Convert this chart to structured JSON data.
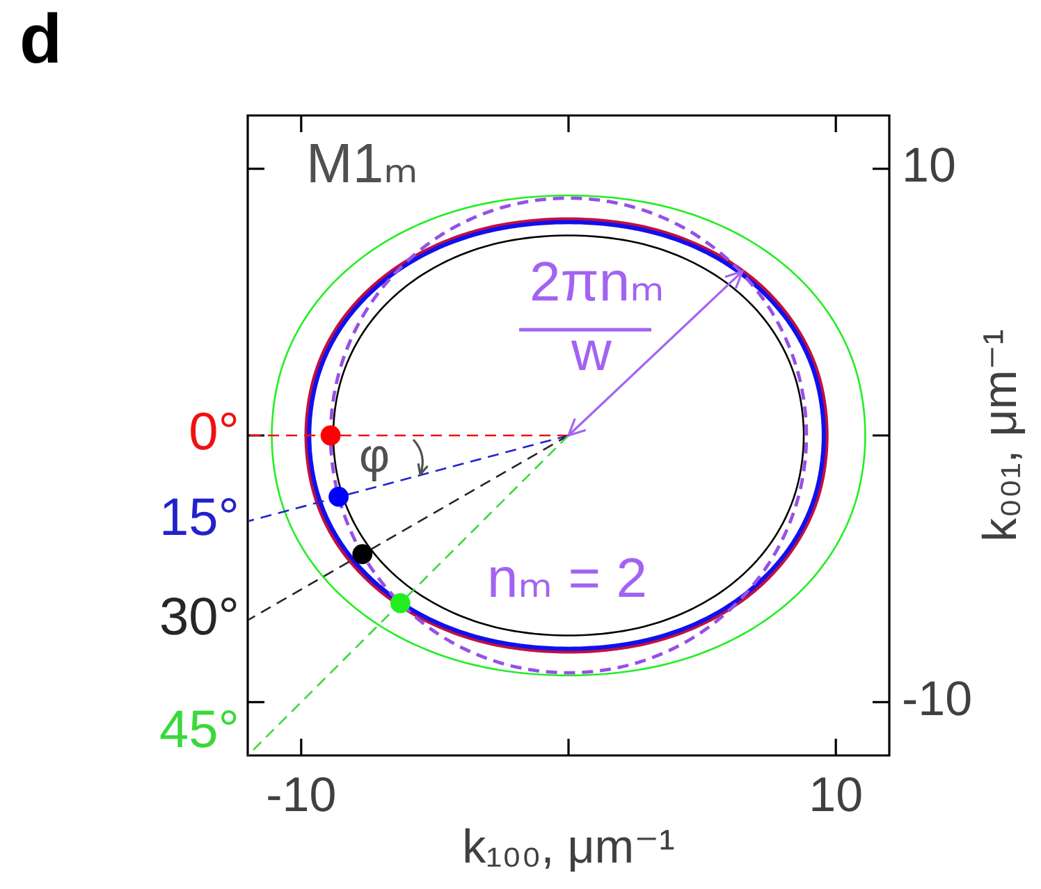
{
  "chart_data": {
    "type": "line",
    "xlim": [
      -12,
      12
    ],
    "ylim": [
      -12,
      12
    ],
    "xticks": [
      -10,
      {
        "value": 0,
        "label": null
      },
      10
    ],
    "yticks": [
      -10,
      {
        "value": 0,
        "label": null
      },
      10
    ],
    "xlabel": "k₁₀₀, μm⁻¹",
    "ylabel": "k₀₀₁, μm⁻¹",
    "annotations": [
      "d",
      "M1ₘ",
      "2πnₘ",
      {
        "text": "w",
        "x": 6.5,
        "y": 6.15
      },
      "φ",
      "nₘ = 2"
    ],
    "series": [
      {
        "type": "line",
        "color": "#22ee22",
        "x": [
          11.1,
          10.74,
          9.68,
          7.98,
          5.74,
          3.06,
          0,
          -3.06,
          -5.74,
          -7.98,
          -9.68,
          -10.74,
          -11.1,
          -10.74,
          -9.68,
          -7.98,
          -5.74,
          -3.06,
          0,
          3.06,
          5.74,
          7.98,
          9.68,
          10.74,
          11.1,
          10.74
        ],
        "values": [
          0,
          2.48,
          4.65,
          6.47,
          7.85,
          8.71,
          9,
          8.71,
          7.85,
          6.47,
          4.65,
          2.48,
          0,
          -2.48,
          -4.65,
          -6.47,
          -7.85,
          -8.71,
          -9,
          -8.71,
          -7.85,
          -6.47,
          -4.65,
          -2.48,
          0,
          2.48
        ]
      },
      {
        "type": "line",
        "color": "#000000",
        "x": [
          8.8,
          8.51,
          7.67,
          6.33,
          4.55,
          2.43,
          0,
          -2.43,
          -4.55,
          -6.33,
          -7.67,
          -8.51,
          -8.8,
          -8.51,
          -7.67,
          -6.33,
          -4.55,
          -2.43,
          0,
          2.43,
          4.55,
          6.33,
          7.67,
          8.51,
          8.8,
          8.51
        ],
        "values": [
          0,
          2.07,
          3.88,
          5.39,
          6.54,
          7.26,
          7.5,
          7.26,
          6.54,
          5.39,
          3.88,
          2.07,
          0,
          -2.07,
          -3.88,
          -5.39,
          -6.54,
          -7.26,
          -7.5,
          -7.26,
          -6.54,
          -5.39,
          -3.88,
          -2.07,
          0,
          2.07
        ]
      },
      {
        "type": "line",
        "color": "#c01040",
        "x": [
          9.65,
          9.34,
          8.41,
          6.94,
          4.99,
          2.66,
          0,
          -2.7,
          -5.06,
          -7.04,
          -8.55,
          -9.48,
          -9.8,
          -9.48,
          -8.55,
          -7.04,
          -5.06,
          -2.7,
          0,
          2.66,
          4.99,
          6.94,
          8.41,
          9.34,
          9.65,
          9.34
        ],
        "values": [
          0,
          2.24,
          4.19,
          5.82,
          7.06,
          7.84,
          8.1,
          7.84,
          7.06,
          5.82,
          4.19,
          2.24,
          0,
          -2.24,
          -4.19,
          -5.82,
          -7.06,
          -7.84,
          -8.1,
          -7.84,
          -7.06,
          -5.82,
          -4.19,
          -2.24,
          0,
          2.24
        ]
      },
      {
        "type": "line",
        "color": "#1010ee",
        "x": [
          9.55,
          9.24,
          8.33,
          6.86,
          4.94,
          2.64,
          0,
          -2.68,
          -5.01,
          -6.97,
          -8.46,
          -9.38,
          -9.7,
          -9.38,
          -8.46,
          -6.97,
          -5.01,
          -2.68,
          0,
          2.64,
          4.94,
          6.86,
          8.33,
          9.24,
          9.55,
          9.24
        ],
        "values": [
          0,
          2.21,
          4.13,
          5.75,
          6.98,
          7.74,
          8,
          7.74,
          6.98,
          5.75,
          4.13,
          2.21,
          0,
          -2.21,
          -4.13,
          -5.75,
          -6.98,
          -7.74,
          -8,
          -7.74,
          -6.98,
          -5.75,
          -4.13,
          -2.21,
          0,
          2.21
        ]
      },
      {
        "type": "line",
        "color": "#9650e8",
        "line_style": "dashed",
        "x": [
          8.9,
          8.6,
          7.71,
          6.29,
          4.45,
          2.3,
          0,
          -2.3,
          -4.45,
          -6.29,
          -7.71,
          -8.6,
          -8.9,
          -8.6,
          -7.71,
          -6.29,
          -4.45,
          -2.3,
          0,
          2.3,
          4.45,
          6.29,
          7.71,
          8.6,
          8.9,
          8.6
        ],
        "values": [
          0,
          2.3,
          4.45,
          6.29,
          7.71,
          8.6,
          8.9,
          8.6,
          7.71,
          6.29,
          4.45,
          2.3,
          0,
          -2.3,
          -4.45,
          -6.29,
          -7.71,
          -8.6,
          -8.9,
          -8.6,
          -7.71,
          -6.29,
          -4.45,
          -2.3,
          0,
          2.3
        ]
      },
      {
        "type": "line",
        "name": "0°",
        "color": "#ee1111",
        "line_style": "dashed",
        "x": [
          0,
          -12
        ],
        "values": [
          0,
          0
        ]
      },
      {
        "type": "line",
        "name": "15°",
        "color": "#2222cc",
        "line_style": "dashed",
        "x": [
          0,
          -12
        ],
        "values": [
          0,
          -3.22
        ]
      },
      {
        "type": "line",
        "name": "30°",
        "color": "#262626",
        "line_style": "dashed",
        "x": [
          0,
          -12
        ],
        "values": [
          0,
          -6.93
        ]
      },
      {
        "type": "line",
        "name": "45°",
        "color": "#3ad83a",
        "line_style": "dashed",
        "x": [
          0,
          -12
        ],
        "values": [
          0,
          -12
        ]
      },
      {
        "type": "scatter",
        "marker": "circle",
        "x": [
          -8.9,
          -8.6,
          -7.71,
          -6.29
        ],
        "values": [
          0,
          -2.3,
          -4.45,
          -6.29
        ],
        "colors": [
          "#ff0000",
          "#0000ff",
          "#000000",
          "#22ee22"
        ]
      }
    ]
  }
}
